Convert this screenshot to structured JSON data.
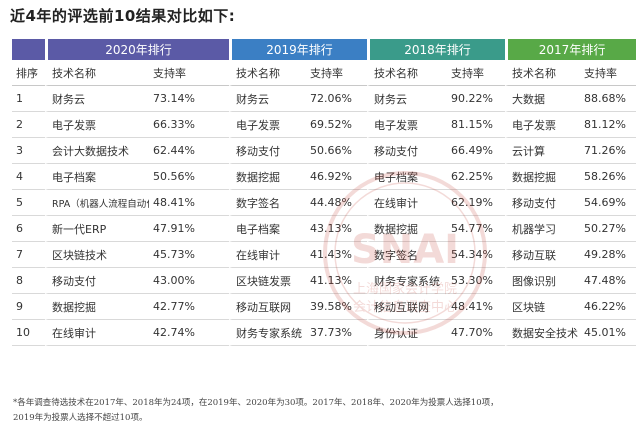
{
  "page_title": "近4年的评选前10结果对比如下:",
  "colors": {
    "y2020": "#5b5aa6",
    "y2019": "#3b7fc4",
    "y2018": "#3a9b8a",
    "y2017": "#58a947"
  },
  "table": {
    "groups": [
      "2020年排行",
      "2019年排行",
      "2018年排行",
      "2017年排行"
    ],
    "rank_header": "排序",
    "tech_header": "技术名称",
    "rate_header": "支持率",
    "rows": [
      {
        "rank": "1",
        "cells": [
          [
            "财务云",
            "73.14%"
          ],
          [
            "财务云",
            "72.06%"
          ],
          [
            "财务云",
            "90.22%"
          ],
          [
            "大数据",
            "88.68%"
          ]
        ]
      },
      {
        "rank": "2",
        "cells": [
          [
            "电子发票",
            "66.33%"
          ],
          [
            "电子发票",
            "69.52%"
          ],
          [
            "电子发票",
            "81.15%"
          ],
          [
            "电子发票",
            "81.12%"
          ]
        ]
      },
      {
        "rank": "3",
        "cells": [
          [
            "会计大数据技术",
            "62.44%"
          ],
          [
            "移动支付",
            "50.66%"
          ],
          [
            "移动支付",
            "66.49%"
          ],
          [
            "云计算",
            "71.26%"
          ]
        ]
      },
      {
        "rank": "4",
        "cells": [
          [
            "电子档案",
            "50.56%"
          ],
          [
            "数据挖掘",
            "46.92%"
          ],
          [
            "电子档案",
            "62.25%"
          ],
          [
            "数据挖掘",
            "58.26%"
          ]
        ]
      },
      {
        "rank": "5",
        "cells": [
          [
            "RPA（机器人流程自动化）",
            "48.41%"
          ],
          [
            "数字签名",
            "44.48%"
          ],
          [
            "在线审计",
            "62.19%"
          ],
          [
            "移动支付",
            "54.69%"
          ]
        ]
      },
      {
        "rank": "6",
        "cells": [
          [
            "新一代ERP",
            "47.91%"
          ],
          [
            "电子档案",
            "43.13%"
          ],
          [
            "数据挖掘",
            "54.77%"
          ],
          [
            "机器学习",
            "50.27%"
          ]
        ]
      },
      {
        "rank": "7",
        "cells": [
          [
            "区块链技术",
            "45.73%"
          ],
          [
            "在线审计",
            "41.43%"
          ],
          [
            "数字签名",
            "54.34%"
          ],
          [
            "移动互联",
            "49.28%"
          ]
        ]
      },
      {
        "rank": "8",
        "cells": [
          [
            "移动支付",
            "43.00%"
          ],
          [
            "区块链发票",
            "41.13%"
          ],
          [
            "财务专家系统",
            "53.30%"
          ],
          [
            "图像识别",
            "47.48%"
          ]
        ]
      },
      {
        "rank": "9",
        "cells": [
          [
            "数据挖掘",
            "42.77%"
          ],
          [
            "移动互联网",
            "39.58%"
          ],
          [
            "移动互联网",
            "48.41%"
          ],
          [
            "区块链",
            "46.22%"
          ]
        ]
      },
      {
        "rank": "10",
        "cells": [
          [
            "在线审计",
            "42.74%"
          ],
          [
            "财务专家系统",
            "37.73%"
          ],
          [
            "身份认证",
            "47.70%"
          ],
          [
            "数据安全技术",
            "45.01%"
          ]
        ]
      }
    ]
  },
  "footnote": {
    "line1": "*各年调查待选技术在2017年、2018年为24项，在2019年、2020年为30项。2017年、2018年、2020年为投票人选择10项，",
    "line2": "2019年为投票人选择不超过10项。"
  },
  "watermark": {
    "logo_text": "SNAI",
    "line1": "上海国家会计学院",
    "line2": "会计信息调查中心"
  }
}
